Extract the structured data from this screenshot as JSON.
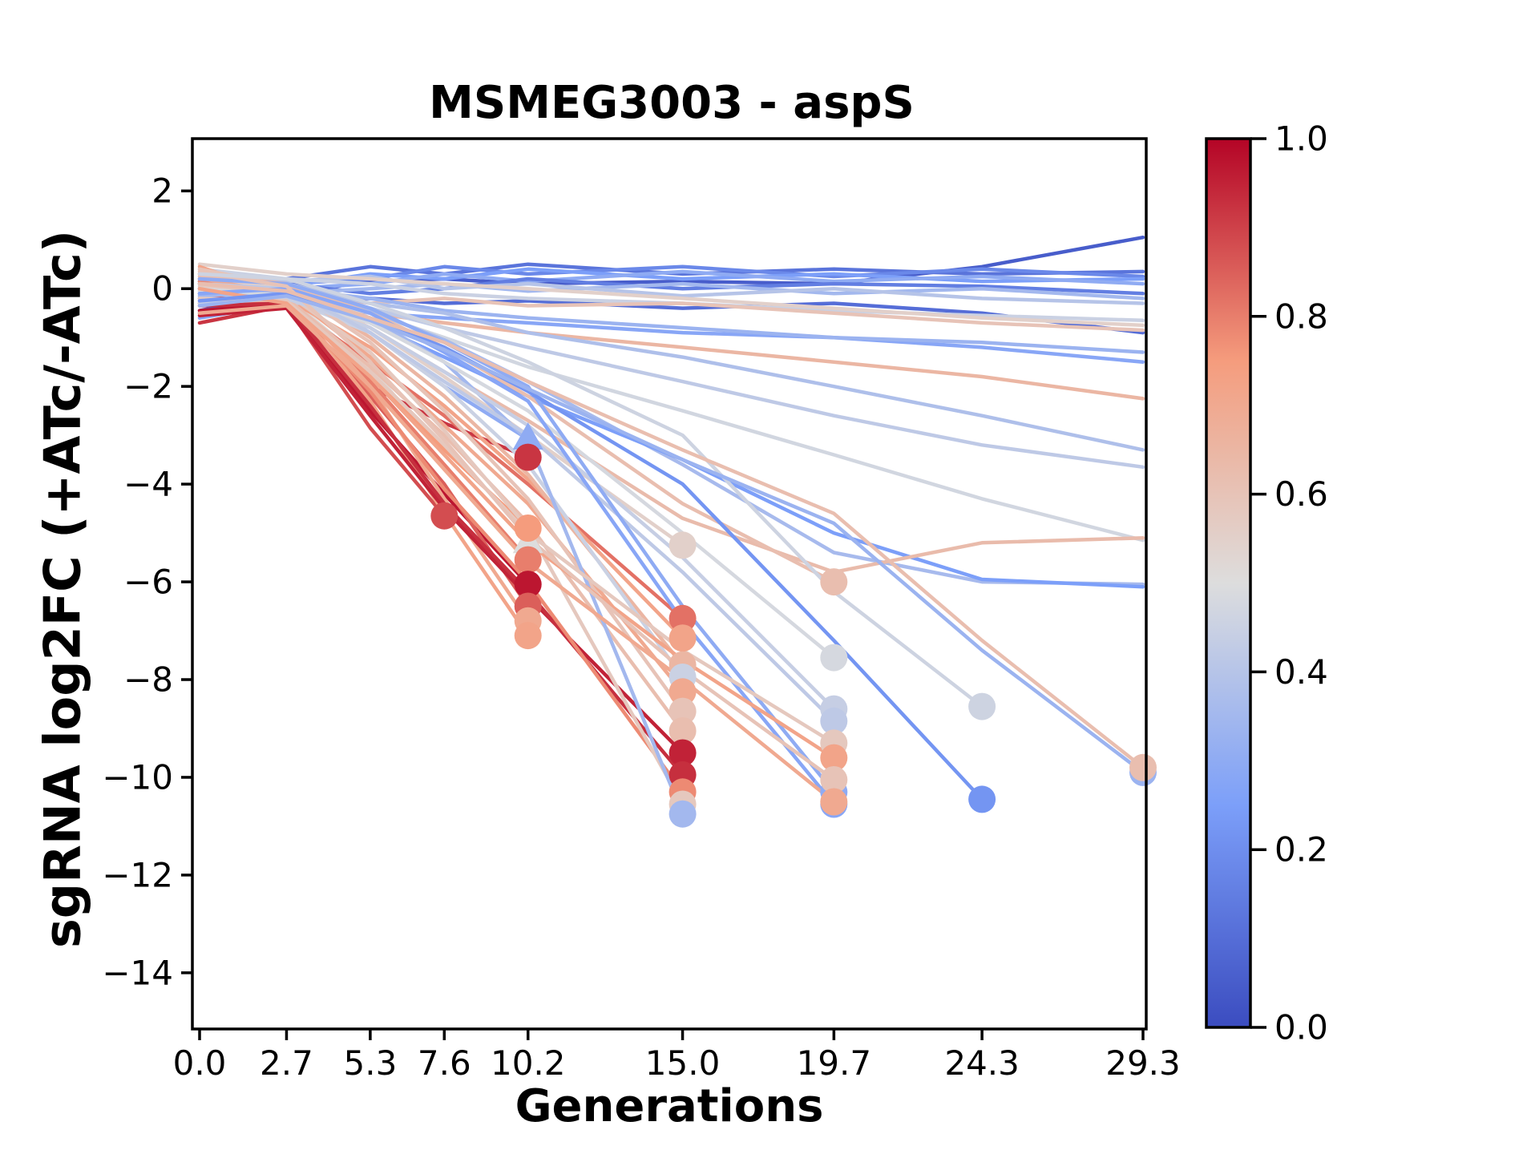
{
  "chart_data": {
    "type": "line",
    "title": "MSMEG3003 - aspS",
    "xlabel": "Generations",
    "ylabel": "sgRNA log2FC (+ATc/-ATc)",
    "x_tick_labels": [
      "0.0",
      "2.7",
      "5.3",
      "7.6",
      "10.2",
      "15.0",
      "19.7",
      "24.3",
      "29.3"
    ],
    "x_tick_values": [
      0,
      2.7,
      5.3,
      7.6,
      10.2,
      15.0,
      19.7,
      24.3,
      29.3
    ],
    "y_tick_labels": [
      "2",
      "0",
      "−2",
      "−4",
      "−6",
      "−8",
      "−10",
      "−12",
      "−14"
    ],
    "y_tick_values": [
      2,
      0,
      -2,
      -4,
      -6,
      -8,
      -10,
      -12,
      -14
    ],
    "xlim": [
      -0.224,
      29.4
    ],
    "ylim": [
      -15.15,
      3.07
    ],
    "grid": false,
    "legend": "none",
    "colorbar": {
      "cmap": "coolwarm",
      "min": 0.0,
      "max": 1.0,
      "tick_labels": [
        "1.0",
        "0.8",
        "0.6",
        "0.4",
        "0.2",
        "0.0"
      ],
      "tick_values": [
        1.0,
        0.8,
        0.6,
        0.4,
        0.2,
        0.0
      ],
      "cmap_anchors": [
        {
          "t": 0.0,
          "hex": "#3B4CC0"
        },
        {
          "t": 0.25,
          "hex": "#7C9FF9"
        },
        {
          "t": 0.5,
          "hex": "#DDDDDD"
        },
        {
          "t": 0.75,
          "hex": "#F59C7D"
        },
        {
          "t": 1.0,
          "hex": "#B40426"
        }
      ]
    },
    "x_grid": [
      0,
      2.7,
      5.3,
      7.6,
      10.2,
      15.0,
      19.7,
      24.3,
      29.3
    ],
    "series": [
      {
        "c": 0.05,
        "y": [
          -0.45,
          -0.1,
          0.15,
          0.2,
          0.1,
          0.15,
          0.1,
          0.45,
          1.05
        ]
      },
      {
        "c": 0.12,
        "y": [
          0.0,
          0.2,
          0.45,
          0.3,
          0.5,
          0.3,
          0.4,
          0.3,
          0.35
        ]
      },
      {
        "c": 0.18,
        "y": [
          -0.1,
          0.1,
          0.2,
          0.45,
          0.3,
          0.45,
          0.25,
          0.4,
          0.25
        ]
      },
      {
        "c": 0.25,
        "y": [
          0.1,
          0.05,
          0.3,
          0.2,
          0.4,
          0.2,
          0.3,
          0.15,
          0.2
        ]
      },
      {
        "c": 0.3,
        "y": [
          -0.2,
          0.0,
          0.1,
          0.3,
          0.15,
          0.35,
          0.15,
          0.25,
          0.1
        ]
      },
      {
        "c": 0.15,
        "y": [
          0.2,
          0.1,
          -0.1,
          0.0,
          0.2,
          0.0,
          0.1,
          0.05,
          -0.1
        ]
      },
      {
        "c": 0.35,
        "y": [
          -0.3,
          -0.1,
          0.0,
          0.1,
          -0.05,
          0.1,
          -0.1,
          0.0,
          -0.2
        ]
      },
      {
        "c": 0.4,
        "y": [
          0.3,
          0.15,
          0.25,
          0.0,
          0.1,
          -0.15,
          0.0,
          -0.2,
          -0.3
        ]
      },
      {
        "c": 0.1,
        "y": [
          -0.5,
          -0.25,
          -0.2,
          -0.3,
          -0.25,
          -0.4,
          -0.3,
          -0.5,
          -0.9
        ]
      },
      {
        "c": 0.45,
        "y": [
          0.4,
          0.2,
          0.1,
          -0.1,
          -0.2,
          -0.3,
          -0.45,
          -0.55,
          -0.65
        ]
      },
      {
        "c": 0.6,
        "y": [
          -0.15,
          -0.05,
          -0.3,
          -0.2,
          -0.35,
          -0.3,
          -0.5,
          -0.7,
          -0.85
        ]
      },
      {
        "c": 0.55,
        "y": [
          0.5,
          0.3,
          0.2,
          0.1,
          0.0,
          -0.2,
          -0.4,
          -0.6,
          -0.75
        ]
      },
      {
        "c": 0.28,
        "y": [
          -0.6,
          -0.3,
          -0.5,
          -0.6,
          -0.7,
          -0.9,
          -1.0,
          -1.2,
          -1.5
        ]
      },
      {
        "c": 0.33,
        "y": [
          0.15,
          0.0,
          -0.2,
          -0.45,
          -0.6,
          -0.8,
          -1.0,
          -1.1,
          -1.3
        ]
      },
      {
        "c": 0.65,
        "y": [
          -0.3,
          -0.2,
          -0.5,
          -0.7,
          -0.9,
          -1.2,
          -1.5,
          -1.8,
          -2.25
        ]
      },
      {
        "c": 0.38,
        "y": [
          0.0,
          0.1,
          -0.3,
          -0.5,
          -0.9,
          -1.4,
          -2.0,
          -2.6,
          -3.3
        ]
      },
      {
        "c": 0.42,
        "y": [
          0.2,
          0.0,
          -0.4,
          -0.8,
          -1.2,
          -1.9,
          -2.6,
          -3.2,
          -3.65
        ]
      },
      {
        "c": 0.47,
        "y": [
          0.1,
          -0.1,
          -0.5,
          -1.0,
          -1.6,
          -2.5,
          -3.4,
          -4.3,
          -5.15
        ]
      },
      {
        "c": 0.36,
        "y": [
          -0.05,
          0.05,
          -0.45,
          -1.05,
          -1.9,
          -3.6,
          -5.4,
          -6.0,
          -6.05
        ]
      },
      {
        "c": 0.25,
        "y": [
          -0.1,
          -0.15,
          -0.7,
          -1.4,
          -2.2,
          -3.5,
          -5.0,
          -5.95,
          -6.1
        ]
      },
      {
        "c": 0.63,
        "y": [
          0.1,
          0.0,
          -0.8,
          -1.7,
          -2.7,
          -4.7,
          -5.8,
          -5.2,
          -5.1
        ]
      },
      {
        "c": 0.88,
        "m": "o",
        "y": [
          -0.1,
          -0.35,
          -2.85,
          -4.65
        ]
      },
      {
        "c": 0.3,
        "m": "^",
        "y": [
          0.15,
          0.05,
          -0.9,
          -2.0,
          -3.08
        ]
      },
      {
        "c": 0.5,
        "m": "^",
        "y": [
          -0.05,
          -0.15,
          -1.6,
          -3.4,
          -5.2
        ]
      },
      {
        "c": 0.92,
        "m": "o",
        "y": [
          -0.7,
          -0.35,
          -2.0,
          -2.75,
          -3.45
        ]
      },
      {
        "c": 0.75,
        "m": "o",
        "y": [
          -0.3,
          -0.3,
          -1.8,
          -3.3,
          -4.9
        ]
      },
      {
        "c": 0.8,
        "m": "o",
        "y": [
          0.1,
          -0.2,
          -1.9,
          -3.6,
          -5.55
        ]
      },
      {
        "c": 0.97,
        "m": "o",
        "y": [
          -0.45,
          -0.3,
          -2.5,
          -4.2,
          -6.05
        ]
      },
      {
        "c": 0.85,
        "m": "o",
        "y": [
          0.0,
          -0.25,
          -2.2,
          -4.0,
          -6.5
        ]
      },
      {
        "c": 0.7,
        "m": "o",
        "y": [
          0.3,
          -0.1,
          -2.0,
          -4.3,
          -6.8
        ]
      },
      {
        "c": 0.72,
        "m": "o",
        "y": [
          0.45,
          -0.15,
          -2.3,
          -4.6,
          -7.1
        ]
      },
      {
        "c": 0.55,
        "m": "o",
        "y": [
          0.2,
          0.0,
          -0.8,
          -1.8,
          -3.0,
          -5.25
        ]
      },
      {
        "c": 0.82,
        "m": "o",
        "y": [
          -0.2,
          -0.3,
          -1.5,
          -2.6,
          -4.0,
          -6.75
        ]
      },
      {
        "c": 0.72,
        "m": "o",
        "y": [
          0.1,
          -0.2,
          -1.2,
          -2.4,
          -3.9,
          -7.15
        ]
      },
      {
        "c": 0.65,
        "m": "o",
        "y": [
          0.3,
          0.1,
          -1.0,
          -2.2,
          -3.8,
          -7.7
        ]
      },
      {
        "c": 0.45,
        "m": "o",
        "y": [
          -0.1,
          -0.2,
          -0.9,
          -2.0,
          -3.6,
          -7.95
        ]
      },
      {
        "c": 0.7,
        "m": "o",
        "y": [
          0.2,
          -0.1,
          -1.4,
          -2.8,
          -4.4,
          -8.25
        ]
      },
      {
        "c": 0.6,
        "m": "o",
        "y": [
          0.4,
          0.05,
          -1.1,
          -2.5,
          -4.3,
          -8.65
        ]
      },
      {
        "c": 0.62,
        "m": "o",
        "y": [
          -0.25,
          -0.2,
          -1.6,
          -3.0,
          -4.8,
          -9.05
        ]
      },
      {
        "c": 0.95,
        "m": "o",
        "y": [
          -0.55,
          -0.4,
          -2.6,
          -4.5,
          -6.3,
          -9.5
        ]
      },
      {
        "c": 0.93,
        "m": "o",
        "y": [
          -0.35,
          -0.3,
          -2.4,
          -4.4,
          -6.2,
          -9.95
        ]
      },
      {
        "c": 0.78,
        "m": "o",
        "y": [
          0.15,
          -0.25,
          -2.1,
          -4.1,
          -6.0,
          -10.3
        ]
      },
      {
        "c": 0.58,
        "m": "o",
        "y": [
          0.05,
          -0.1,
          -1.3,
          -2.9,
          -4.9,
          -10.55
        ]
      },
      {
        "c": 0.35,
        "m": "o",
        "y": [
          -0.15,
          -0.05,
          -0.6,
          -1.5,
          -3.1,
          -10.75
        ]
      },
      {
        "c": 0.62,
        "m": "o",
        "y": [
          0.25,
          0.1,
          -0.5,
          -1.2,
          -2.2,
          -4.4,
          -6.0
        ]
      },
      {
        "c": 0.48,
        "m": "o",
        "y": [
          0.0,
          -0.15,
          -0.7,
          -1.5,
          -2.5,
          -5.0,
          -7.55
        ]
      },
      {
        "c": 0.44,
        "m": "o",
        "y": [
          -0.3,
          -0.2,
          -0.8,
          -1.7,
          -2.8,
          -5.5,
          -8.6
        ]
      },
      {
        "c": 0.42,
        "m": "o",
        "y": [
          0.1,
          0.0,
          -0.9,
          -1.9,
          -3.0,
          -5.8,
          -8.85
        ]
      },
      {
        "c": 0.3,
        "m": "o",
        "y": [
          0.2,
          0.1,
          -0.4,
          -1.1,
          -2.0,
          -6.5,
          -10.3
        ]
      },
      {
        "c": 0.28,
        "m": "o",
        "y": [
          -0.1,
          0.0,
          -0.5,
          -1.3,
          -2.3,
          -6.8,
          -10.55
        ]
      },
      {
        "c": 0.58,
        "m": "o",
        "y": [
          -0.2,
          -0.25,
          -1.7,
          -3.2,
          -5.0,
          -7.4,
          -9.3
        ]
      },
      {
        "c": 0.72,
        "m": "o",
        "y": [
          0.0,
          -0.3,
          -1.8,
          -3.4,
          -5.2,
          -7.6,
          -9.6
        ]
      },
      {
        "c": 0.6,
        "m": "o",
        "y": [
          0.35,
          0.05,
          -1.5,
          -3.1,
          -5.1,
          -7.8,
          -10.05
        ]
      },
      {
        "c": 0.7,
        "m": "o",
        "y": [
          -0.5,
          -0.35,
          -2.0,
          -3.7,
          -5.6,
          -8.0,
          -10.5
        ]
      },
      {
        "c": 0.46,
        "m": "o",
        "y": [
          0.3,
          0.2,
          -0.3,
          -0.8,
          -1.5,
          -3.0,
          -6.2,
          -8.55
        ]
      },
      {
        "c": 0.22,
        "m": "o",
        "y": [
          -0.25,
          -0.1,
          -0.6,
          -1.2,
          -2.1,
          -4.0,
          -7.2,
          -10.45
        ]
      },
      {
        "c": 0.33,
        "m": "o",
        "y": [
          -0.35,
          -0.15,
          -0.65,
          -1.25,
          -2.05,
          -3.5,
          -4.8,
          -7.4,
          -9.9
        ]
      },
      {
        "c": 0.62,
        "m": "o",
        "y": [
          0.1,
          -0.05,
          -0.6,
          -1.1,
          -1.9,
          -3.3,
          -4.6,
          -7.2,
          -9.8
        ]
      }
    ]
  }
}
